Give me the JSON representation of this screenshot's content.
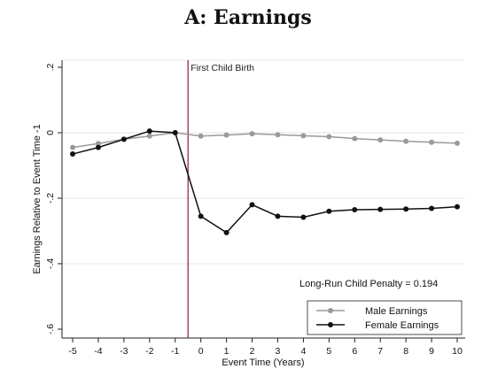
{
  "chart_data": {
    "type": "line",
    "title": "A: Earnings",
    "xlabel": "Event Time (Years)",
    "ylabel": "Earnings Relative to Event Time -1",
    "xlim": [
      -5,
      10
    ],
    "ylim": [
      -0.6,
      0.2
    ],
    "x": [
      -5,
      -4,
      -3,
      -2,
      -1,
      0,
      1,
      2,
      3,
      4,
      5,
      6,
      7,
      8,
      9,
      10
    ],
    "x_tick_labels": [
      "-5",
      "-4",
      "-3",
      "-2",
      "-1",
      "0",
      "1",
      "2",
      "3",
      "4",
      "5",
      "6",
      "7",
      "8",
      "9",
      "10"
    ],
    "y_ticks": [
      0.2,
      0,
      -0.2,
      -0.4,
      -0.6
    ],
    "y_tick_labels": [
      ".2",
      "0",
      "-.2",
      "-.4",
      "-.6"
    ],
    "grid": "horizontal",
    "event_line": {
      "x": -0.5,
      "label": "First Child Birth",
      "color": "#8b1a3a"
    },
    "annotation": "Long-Run Child Penalty = 0.194",
    "legend_position": "bottom-right",
    "series": [
      {
        "name": "Male Earnings",
        "color": "#9a9a9a",
        "values": [
          -0.045,
          -0.033,
          -0.02,
          -0.01,
          0.0,
          -0.01,
          -0.007,
          -0.003,
          -0.006,
          -0.009,
          -0.012,
          -0.018,
          -0.022,
          -0.026,
          -0.029,
          -0.032
        ]
      },
      {
        "name": "Female Earnings",
        "color": "#111111",
        "values": [
          -0.065,
          -0.045,
          -0.02,
          0.005,
          0.0,
          -0.255,
          -0.305,
          -0.22,
          -0.255,
          -0.258,
          -0.24,
          -0.235,
          -0.234,
          -0.233,
          -0.231,
          -0.226
        ]
      }
    ]
  }
}
